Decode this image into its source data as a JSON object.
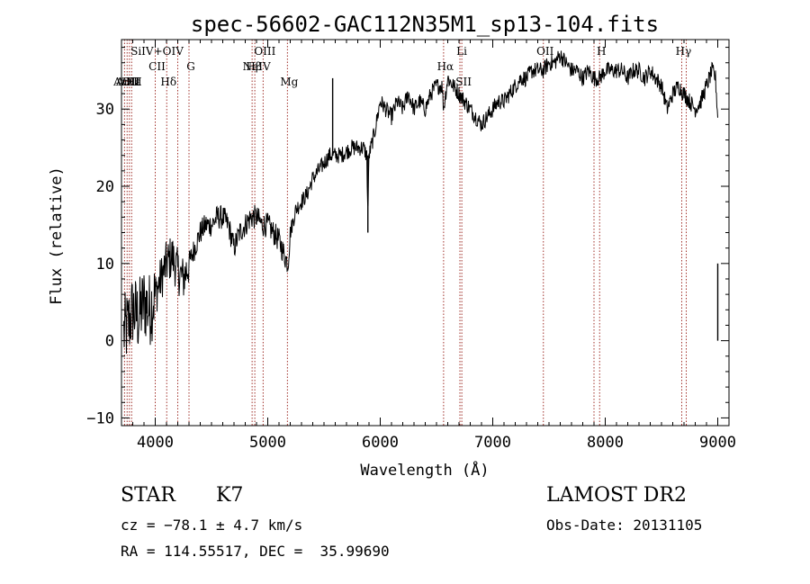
{
  "chart_data": {
    "type": "line",
    "title": "spec-56602-GAC112N35M1_sp13-104.fits",
    "xlabel": "Wavelength (Å)",
    "ylabel": "Flux (relative)",
    "xlim": [
      3700,
      9100
    ],
    "ylim": [
      -11,
      39
    ],
    "xticks": [
      4000,
      5000,
      6000,
      7000,
      8000,
      9000
    ],
    "yticks": [
      -10,
      0,
      10,
      20,
      30
    ],
    "grid": false,
    "line_color": "#000000",
    "marker_color": "#a0302a",
    "spectrum": {
      "x": [
        3720,
        3760,
        3800,
        3850,
        3900,
        3950,
        4000,
        4050,
        4100,
        4150,
        4200,
        4250,
        4300,
        4350,
        4400,
        4450,
        4500,
        4550,
        4600,
        4650,
        4700,
        4750,
        4800,
        4850,
        4900,
        4950,
        5000,
        5050,
        5100,
        5150,
        5180,
        5200,
        5250,
        5300,
        5350,
        5400,
        5450,
        5500,
        5550,
        5600,
        5650,
        5700,
        5750,
        5800,
        5850,
        5880,
        5890,
        5900,
        5950,
        6000,
        6050,
        6100,
        6150,
        6200,
        6250,
        6300,
        6350,
        6400,
        6450,
        6500,
        6550,
        6563,
        6600,
        6650,
        6700,
        6750,
        6800,
        6850,
        6900,
        6950,
        7000,
        7050,
        7100,
        7150,
        7200,
        7250,
        7300,
        7350,
        7400,
        7450,
        7500,
        7550,
        7600,
        7650,
        7700,
        7750,
        7800,
        7850,
        7900,
        7950,
        8000,
        8050,
        8100,
        8150,
        8200,
        8250,
        8300,
        8350,
        8400,
        8450,
        8500,
        8550,
        8600,
        8650,
        8700,
        8750,
        8800,
        8850,
        8900,
        8950,
        8980,
        9000
      ],
      "y": [
        1,
        2,
        4,
        3,
        5,
        4,
        6,
        8,
        10,
        11,
        9,
        8,
        10,
        12,
        14,
        15,
        15,
        16,
        16,
        15,
        12,
        14,
        15,
        16,
        16,
        15,
        15,
        14,
        13,
        11,
        10,
        14,
        17,
        18,
        19,
        21,
        22,
        23,
        24,
        24,
        24,
        24.5,
        25,
        25,
        25,
        24,
        16,
        24,
        27,
        31,
        30,
        29,
        31,
        30,
        32,
        30,
        31,
        30,
        32,
        33,
        33,
        30,
        34,
        33,
        32,
        31,
        30,
        29,
        28,
        29,
        30,
        31,
        31,
        32,
        33,
        34,
        34,
        35,
        35,
        35,
        36,
        36,
        37,
        36,
        35,
        35,
        34,
        35,
        34,
        34,
        35,
        35,
        35,
        35,
        34,
        35,
        35,
        34,
        35,
        34,
        33,
        30,
        32,
        33,
        32,
        31,
        30,
        31,
        33,
        35,
        34,
        29
      ]
    },
    "spikes": [
      {
        "x": 5577,
        "y0": 24,
        "y1": 34
      },
      {
        "x": 5890,
        "y0": 24,
        "y1": 14
      },
      {
        "x": 9000,
        "y0": 10,
        "y1": 0
      }
    ],
    "line_markers": [
      {
        "x": 3727,
        "labels": [
          "ArIII"
        ]
      },
      {
        "x": 3750,
        "labels": [
          "ArIII"
        ]
      },
      {
        "x": 3770,
        "labels": [
          "OII"
        ]
      },
      {
        "x": 3790,
        "labels": [
          "Hε"
        ]
      },
      {
        "x": 4000,
        "labels": [
          "SiIV+OIV",
          "CII"
        ]
      },
      {
        "x": 4102,
        "labels": [
          "Hδ"
        ]
      },
      {
        "x": 4200,
        "labels": []
      },
      {
        "x": 4300,
        "labels": [
          "G"
        ]
      },
      {
        "x": 4861,
        "labels": [
          "Hβ"
        ]
      },
      {
        "x": 4885,
        "labels": [
          "NeIV"
        ]
      },
      {
        "x": 4959,
        "labels": [
          "OIII"
        ]
      },
      {
        "x": 5175,
        "labels": [
          "Mg"
        ]
      },
      {
        "x": 6563,
        "labels": [
          "Hα"
        ]
      },
      {
        "x": 6708,
        "labels": [
          "Li"
        ]
      },
      {
        "x": 6725,
        "labels": [
          "SII"
        ]
      },
      {
        "x": 7450,
        "labels": [
          "OII"
        ]
      },
      {
        "x": 7900,
        "labels": []
      },
      {
        "x": 7950,
        "labels": [
          "H"
        ]
      },
      {
        "x": 8680,
        "labels": [
          "Hγ"
        ]
      },
      {
        "x": 8720,
        "labels": []
      }
    ]
  },
  "info": {
    "object_class": "STAR",
    "subclass": "K7",
    "redshift": "cz = −78.1 ± 4.7 km/s",
    "coords": "RA = 114.55517, DEC =  35.99690",
    "survey": "LAMOST DR2",
    "obs_date": "Obs-Date: 20131105"
  }
}
